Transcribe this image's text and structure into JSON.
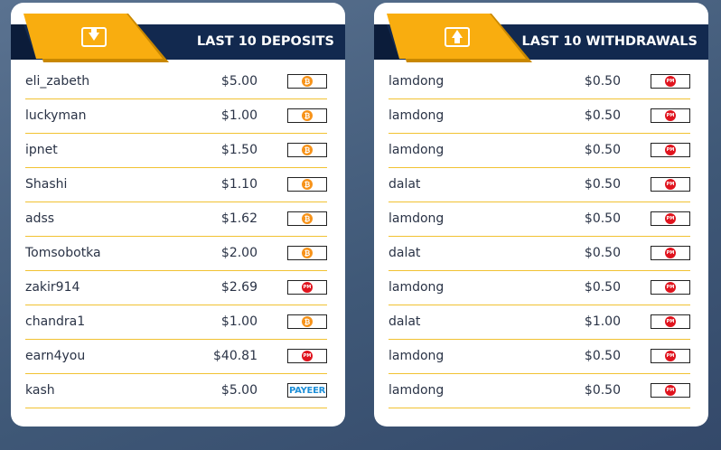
{
  "panels": [
    {
      "title": "LAST 10 DEPOSITS",
      "rows": [
        {
          "user": "eli_zabeth",
          "amount": "$5.00",
          "method": "₿"
        },
        {
          "user": "luckyman",
          "amount": "$1.00",
          "method": "₿"
        },
        {
          "user": "ipnet",
          "amount": "$1.50",
          "method": "₿"
        },
        {
          "user": "Shashi",
          "amount": "$1.10",
          "method": "₿"
        },
        {
          "user": "adss",
          "amount": "$1.62",
          "method": "₿"
        },
        {
          "user": "Tomsobotka",
          "amount": "$2.00",
          "method": "₿"
        },
        {
          "user": "zakir914",
          "amount": "$2.69",
          "method": "PM"
        },
        {
          "user": "chandra1",
          "amount": "$1.00",
          "method": "₿"
        },
        {
          "user": "earn4you",
          "amount": "$40.81",
          "method": "PM"
        },
        {
          "user": "kash",
          "amount": "$5.00",
          "method": "PAYEER"
        }
      ]
    },
    {
      "title": "LAST 10 WITHDRAWALS",
      "rows": [
        {
          "user": "lamdong",
          "amount": "$0.50",
          "method": "PM"
        },
        {
          "user": "lamdong",
          "amount": "$0.50",
          "method": "PM"
        },
        {
          "user": "lamdong",
          "amount": "$0.50",
          "method": "PM"
        },
        {
          "user": "dalat",
          "amount": "$0.50",
          "method": "PM"
        },
        {
          "user": "lamdong",
          "amount": "$0.50",
          "method": "PM"
        },
        {
          "user": "dalat",
          "amount": "$0.50",
          "method": "PM"
        },
        {
          "user": "lamdong",
          "amount": "$0.50",
          "method": "PM"
        },
        {
          "user": "dalat",
          "amount": "$1.00",
          "method": "PM"
        },
        {
          "user": "lamdong",
          "amount": "$0.50",
          "method": "PM"
        },
        {
          "user": "lamdong",
          "amount": "$0.50",
          "method": "PM"
        }
      ]
    }
  ]
}
